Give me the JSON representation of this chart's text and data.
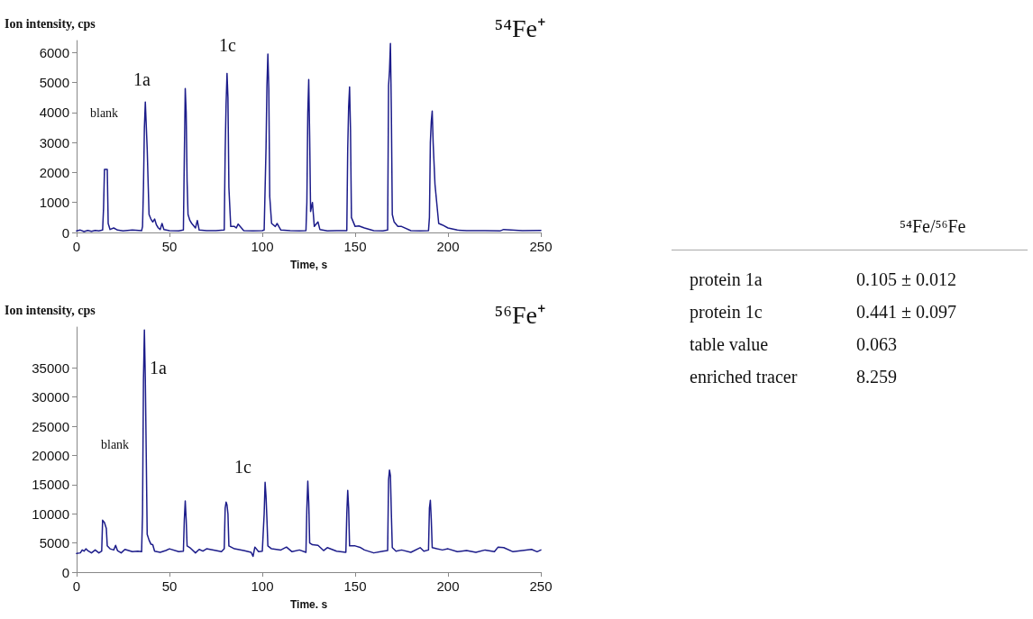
{
  "chart_data": [
    {
      "type": "line",
      "title": "⁵⁴Fe⁺",
      "xlabel": "Time, s",
      "ylabel": "Ion intensity, cps",
      "xlim": [
        0,
        250
      ],
      "xticks": [
        0,
        50,
        100,
        150,
        200,
        250
      ],
      "ylim": [
        0,
        6400
      ],
      "yticks": [
        0,
        1000,
        2000,
        3000,
        4000,
        5000,
        6000
      ],
      "grid": false,
      "marker": "none",
      "line_style": "solid",
      "annotations": [
        "blank",
        "1a",
        "1c"
      ],
      "series": [
        {
          "color": "#1c1c8a",
          "x": [
            0,
            2,
            4,
            6,
            8,
            10,
            12,
            14,
            14.5,
            15,
            15.5,
            16.5,
            17,
            18,
            20,
            22,
            25,
            30,
            35,
            35.5,
            36,
            36.5,
            37,
            38,
            39,
            40,
            41,
            42,
            43,
            44,
            45,
            46,
            47,
            50,
            55,
            57.5,
            58,
            58.5,
            59,
            59.5,
            60,
            61,
            62,
            64,
            65,
            66,
            70,
            75,
            79.5,
            80,
            80.5,
            81,
            81.5,
            82,
            83,
            85,
            86,
            87,
            90,
            95,
            100,
            101,
            102,
            102.5,
            103,
            103.5,
            104,
            105,
            107,
            108,
            110,
            115,
            120,
            123.5,
            124,
            124.5,
            125,
            125.5,
            126,
            127,
            127.5,
            128,
            130,
            131,
            135,
            140,
            145.5,
            146,
            146.5,
            147,
            147.5,
            148,
            150,
            152,
            155,
            160,
            165,
            167.5,
            168,
            168.5,
            169,
            169.5,
            170,
            171,
            173,
            175,
            180,
            185,
            189.5,
            190,
            190.5,
            191,
            191.5,
            192,
            193,
            195,
            197,
            200,
            205,
            210,
            220,
            228,
            230,
            240,
            250
          ],
          "values": [
            50,
            80,
            30,
            70,
            40,
            70,
            50,
            80,
            800,
            2100,
            2100,
            2100,
            300,
            100,
            150,
            80,
            50,
            80,
            60,
            200,
            1500,
            3500,
            4350,
            2800,
            600,
            450,
            350,
            450,
            250,
            150,
            100,
            300,
            100,
            60,
            50,
            80,
            2500,
            4800,
            4000,
            1700,
            600,
            400,
            300,
            150,
            400,
            80,
            60,
            60,
            80,
            2700,
            4300,
            5300,
            4500,
            1500,
            200,
            200,
            150,
            280,
            60,
            50,
            60,
            80,
            2800,
            4900,
            5950,
            4800,
            1200,
            300,
            200,
            300,
            80,
            60,
            50,
            60,
            1000,
            4000,
            5100,
            3200,
            700,
            1000,
            600,
            200,
            350,
            100,
            50,
            60,
            60,
            2800,
            4200,
            4850,
            3400,
            500,
            200,
            220,
            150,
            60,
            50,
            80,
            4900,
            5400,
            6300,
            4000,
            600,
            350,
            200,
            200,
            60,
            50,
            60,
            500,
            3000,
            3700,
            4050,
            3000,
            1600,
            300,
            250,
            150,
            80,
            60,
            60,
            50,
            100,
            60,
            70
          ]
        }
      ]
    },
    {
      "type": "line",
      "title": "⁵⁶Fe⁺",
      "xlabel": "Time. s",
      "ylabel": "Ion intensity, cps",
      "xlim": [
        0,
        250
      ],
      "xticks": [
        0,
        50,
        100,
        150,
        200,
        250
      ],
      "ylim": [
        0,
        42000
      ],
      "yticks": [
        0,
        5000,
        10000,
        15000,
        20000,
        25000,
        30000,
        35000
      ],
      "grid": false,
      "marker": "none",
      "line_style": "solid",
      "annotations": [
        "blank",
        "1a",
        "1c"
      ],
      "series": [
        {
          "color": "#1c1c8a",
          "x": [
            0,
            2,
            3,
            4,
            5,
            6,
            8,
            10,
            12,
            13.5,
            14,
            15,
            16,
            16.5,
            18,
            20,
            21,
            22,
            24,
            26,
            30,
            33,
            35,
            35.5,
            36,
            36.5,
            37,
            37.5,
            38,
            39,
            40,
            41,
            42,
            45,
            48,
            50,
            55,
            57.5,
            58,
            58.5,
            59,
            59.5,
            61,
            64,
            66,
            68,
            70,
            75,
            78,
            79.5,
            80,
            80.5,
            81,
            81.5,
            82,
            85,
            90,
            94,
            95,
            96,
            98,
            100,
            101,
            101.5,
            102,
            102.5,
            103,
            105,
            110,
            113,
            116,
            120,
            123.5,
            124,
            124.5,
            125,
            125.5,
            127,
            130,
            133,
            135,
            140,
            145,
            145.5,
            146,
            146.5,
            147,
            150,
            153,
            155,
            160,
            165,
            167.5,
            168,
            168.5,
            169,
            169.5,
            170,
            172,
            175,
            180,
            185,
            187,
            189.5,
            190,
            190.5,
            191,
            191.5,
            194,
            197,
            200,
            205,
            210,
            215,
            220,
            225,
            227,
            230,
            235,
            240,
            245,
            248,
            250
          ],
          "values": [
            3200,
            3300,
            3800,
            3600,
            4000,
            3700,
            3300,
            3800,
            3300,
            3600,
            8900,
            8500,
            7500,
            4500,
            4000,
            3800,
            4600,
            3700,
            3300,
            3900,
            3500,
            3600,
            3500,
            10000,
            33000,
            41500,
            33000,
            20000,
            6500,
            5500,
            4800,
            4700,
            3600,
            3400,
            3700,
            4000,
            3500,
            3600,
            9000,
            12200,
            9000,
            4500,
            4200,
            3300,
            3900,
            3600,
            4000,
            3700,
            3500,
            4000,
            11000,
            12000,
            11500,
            10000,
            4500,
            4000,
            3700,
            3400,
            2700,
            4300,
            3500,
            3600,
            10000,
            15400,
            13000,
            9000,
            4500,
            4000,
            3800,
            4300,
            3500,
            3800,
            3400,
            11000,
            15600,
            12000,
            5000,
            4700,
            4600,
            3700,
            4200,
            3600,
            3400,
            10000,
            14000,
            11000,
            4500,
            4500,
            4200,
            3800,
            3300,
            3600,
            3700,
            15800,
            17500,
            16500,
            10000,
            4200,
            3600,
            3800,
            3400,
            4200,
            3600,
            3800,
            11000,
            12300,
            9000,
            4200,
            4000,
            3800,
            4000,
            3500,
            3700,
            3400,
            3800,
            3500,
            4300,
            4200,
            3500,
            3700,
            3900,
            3500,
            3800
          ]
        }
      ]
    },
    {
      "type": "other",
      "title": "⁵⁴Fe/⁵⁶Fe",
      "annotations": [
        "protein 1a",
        "0.105 ± 0.012",
        "protein 1c",
        "0.441 ± 0.097",
        "table value",
        "0.063",
        "enriched tracer",
        "8.259"
      ]
    }
  ]
}
